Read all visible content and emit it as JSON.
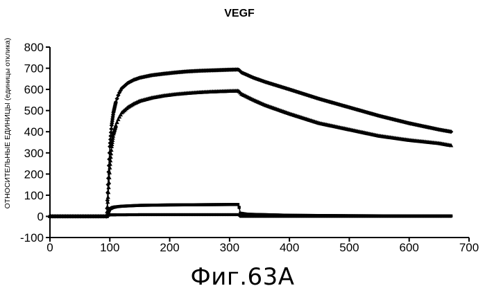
{
  "caption": "Фиг.63А",
  "chart_data": {
    "type": "line",
    "title": "VEGF",
    "xlabel": "",
    "ylabel": "ОТНОСИТЕЛЬНЫЕ ЕДИНИЦЫ (единицы отклика)",
    "xlim": [
      0,
      700
    ],
    "ylim": [
      -100,
      800
    ],
    "xticks": [
      0,
      100,
      200,
      300,
      400,
      500,
      600,
      700
    ],
    "yticks": [
      -100,
      0,
      100,
      200,
      300,
      400,
      500,
      600,
      700,
      800
    ],
    "grid": false,
    "legend": "none",
    "series": [
      {
        "marker": "diamond",
        "x": [
          0,
          95,
          97,
          100,
          103,
          106,
          110,
          115,
          120,
          130,
          140,
          150,
          170,
          190,
          210,
          230,
          250,
          270,
          290,
          300,
          315,
          320,
          340,
          360,
          400,
          450,
          500,
          550,
          600,
          650,
          670
        ],
        "values": [
          0,
          0,
          150,
          330,
          430,
          490,
          540,
          580,
          605,
          630,
          645,
          655,
          667,
          674,
          680,
          685,
          688,
          690,
          692,
          693,
          694,
          680,
          655,
          635,
          600,
          555,
          515,
          475,
          440,
          410,
          400
        ]
      },
      {
        "marker": "triangle",
        "x": [
          0,
          95,
          97,
          100,
          103,
          106,
          110,
          115,
          120,
          130,
          140,
          150,
          170,
          190,
          210,
          230,
          250,
          270,
          290,
          300,
          315,
          320,
          340,
          360,
          400,
          450,
          500,
          550,
          600,
          650,
          670
        ],
        "values": [
          0,
          0,
          90,
          230,
          330,
          390,
          430,
          465,
          490,
          515,
          532,
          545,
          560,
          570,
          577,
          582,
          586,
          589,
          591,
          592,
          593,
          578,
          550,
          525,
          485,
          440,
          410,
          380,
          360,
          345,
          335
        ]
      },
      {
        "marker": "square",
        "x": [
          0,
          95,
          98,
          100,
          105,
          110,
          120,
          150,
          200,
          250,
          300,
          315,
          318,
          330,
          400,
          500,
          600,
          670
        ],
        "values": [
          0,
          0,
          20,
          35,
          42,
          45,
          48,
          52,
          54,
          55,
          56,
          56,
          15,
          10,
          5,
          3,
          2,
          2
        ]
      },
      {
        "marker": "circle",
        "x": [
          0,
          95,
          100,
          150,
          200,
          250,
          300,
          315,
          318,
          400,
          500,
          600,
          670
        ],
        "values": [
          0,
          0,
          7,
          8,
          8,
          8,
          8,
          8,
          0,
          0,
          0,
          0,
          0
        ]
      }
    ]
  }
}
